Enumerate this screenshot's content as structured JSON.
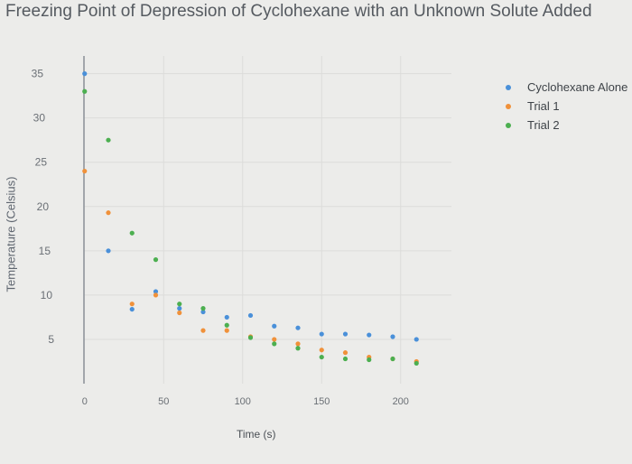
{
  "chart_data": {
    "type": "scatter",
    "title": "Freezing Point of Depression of Cyclohexane with an Unknown Solute Added",
    "xlabel": "Time (s)",
    "ylabel": "Temperature (Celsius)",
    "xlim": [
      -5,
      215
    ],
    "ylim": [
      0,
      37
    ],
    "x_ticks": [
      "0",
      "50",
      "100",
      "150",
      "200"
    ],
    "y_ticks": [
      "5",
      "10",
      "15",
      "20",
      "25",
      "30",
      "35"
    ],
    "grid": true,
    "legend_position": "top-right",
    "series": [
      {
        "name": "Cyclohexane Alone",
        "color": "#4a90d9",
        "points": [
          [
            0,
            35
          ],
          [
            15,
            15
          ],
          [
            30,
            8.4
          ],
          [
            45,
            10.4
          ],
          [
            60,
            8.5
          ],
          [
            75,
            8.1
          ],
          [
            90,
            7.5
          ],
          [
            105,
            7.7
          ],
          [
            120,
            6.5
          ],
          [
            135,
            6.3
          ],
          [
            150,
            5.6
          ],
          [
            165,
            5.6
          ],
          [
            180,
            5.5
          ],
          [
            195,
            5.3
          ],
          [
            210,
            5
          ]
        ]
      },
      {
        "name": "Trial 1",
        "color": "#f0913a",
        "points": [
          [
            0,
            24
          ],
          [
            15,
            19.3
          ],
          [
            30,
            9
          ],
          [
            45,
            10
          ],
          [
            60,
            8
          ],
          [
            75,
            6
          ],
          [
            90,
            6
          ],
          [
            105,
            5.3
          ],
          [
            120,
            5
          ],
          [
            135,
            4.5
          ],
          [
            150,
            3.8
          ],
          [
            165,
            3.5
          ],
          [
            180,
            3
          ],
          [
            195,
            2.8
          ],
          [
            210,
            2.5
          ]
        ]
      },
      {
        "name": "Trial 2",
        "color": "#4caf50",
        "points": [
          [
            0,
            33
          ],
          [
            15,
            27.5
          ],
          [
            30,
            17
          ],
          [
            45,
            14
          ],
          [
            60,
            9
          ],
          [
            75,
            8.5
          ],
          [
            90,
            6.6
          ],
          [
            105,
            5.2
          ],
          [
            120,
            4.5
          ],
          [
            135,
            4
          ],
          [
            150,
            3
          ],
          [
            165,
            2.8
          ],
          [
            180,
            2.7
          ],
          [
            195,
            2.8
          ],
          [
            210,
            2.3
          ]
        ]
      }
    ]
  }
}
